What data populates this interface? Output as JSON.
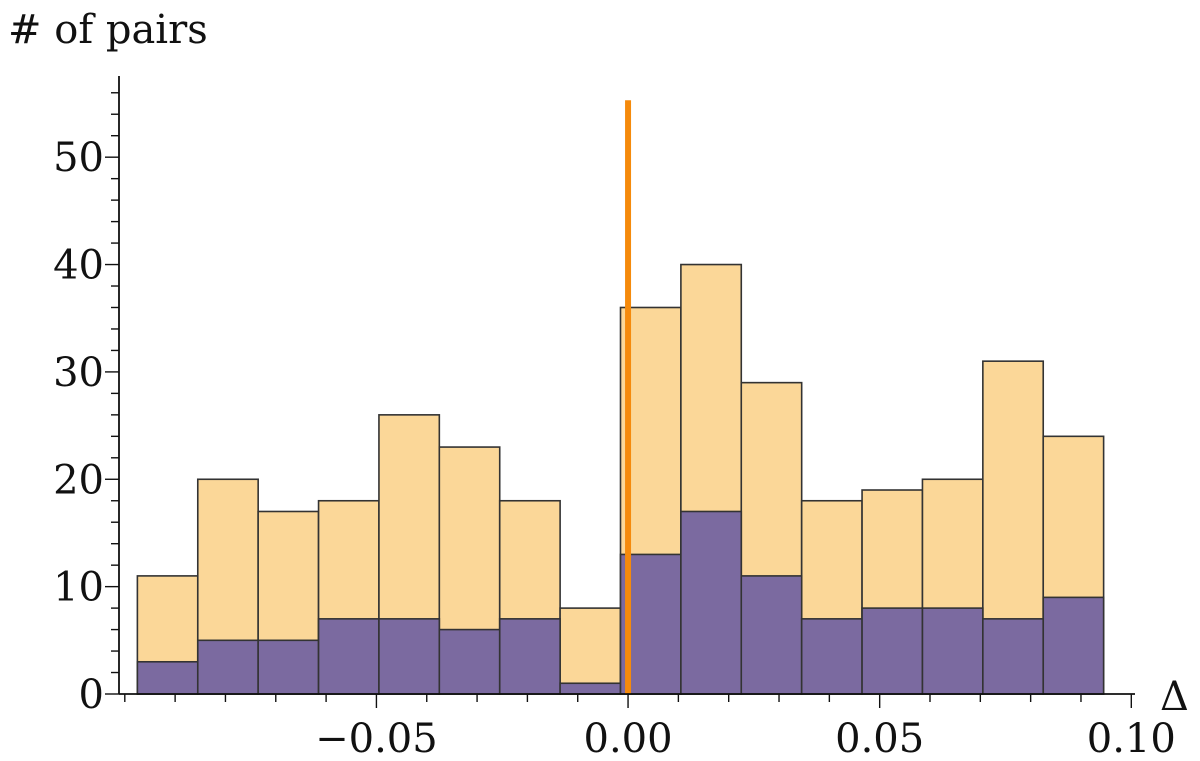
{
  "chart_data": {
    "type": "bar",
    "title": "",
    "xlabel": "Δ",
    "ylabel": "# of pairs",
    "x_ticks": [
      -0.05,
      0.0,
      0.05,
      0.1
    ],
    "x_tick_labels": [
      "−0.05",
      "0.00",
      "0.05",
      "0.10"
    ],
    "y_ticks": [
      0,
      10,
      20,
      30,
      40,
      50
    ],
    "y_tick_labels": [
      "0",
      "10",
      "20",
      "30",
      "40",
      "50"
    ],
    "xlim": [
      -0.1,
      0.1
    ],
    "ylim": [
      0,
      55
    ],
    "bin_edges": [
      -0.0975,
      -0.0855,
      -0.0735,
      -0.0615,
      -0.0495,
      -0.0375,
      -0.0255,
      -0.0135,
      -0.0015,
      0.0105,
      0.0225,
      0.0345,
      0.0465,
      0.0585,
      0.0705,
      0.0825,
      0.0945
    ],
    "series": [
      {
        "values": [
          11,
          20,
          17,
          18,
          26,
          23,
          18,
          8,
          36,
          40,
          29,
          18,
          19,
          20,
          31,
          24
        ],
        "color": "#fbd798"
      },
      {
        "values": [
          3,
          5,
          5,
          7,
          7,
          6,
          7,
          1,
          13,
          17,
          11,
          7,
          8,
          8,
          7,
          9
        ],
        "color": "#7b6aa0"
      }
    ],
    "reference_line": {
      "x": 0.0,
      "color": "#f58a0c"
    },
    "grid": false,
    "legend": "none"
  }
}
